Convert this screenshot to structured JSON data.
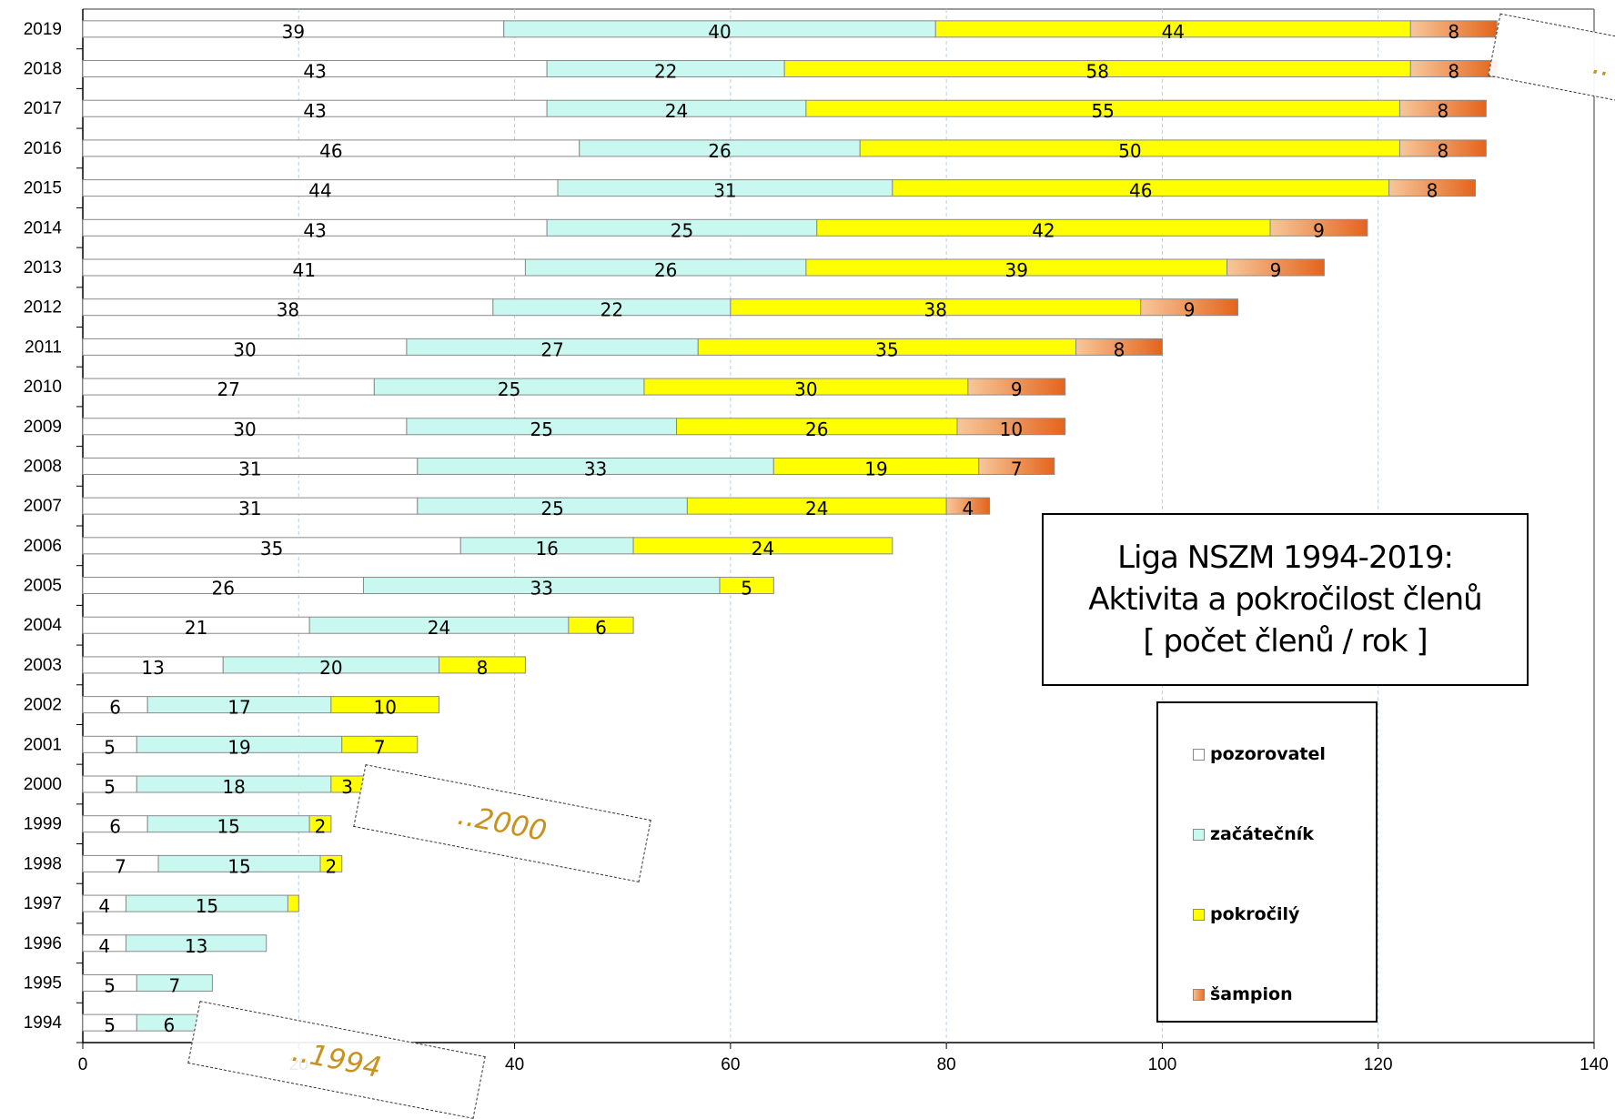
{
  "chart_data": {
    "type": "bar",
    "orientation": "horizontal",
    "stacked": true,
    "title_lines": [
      "Liga NSZM 1994-2019:",
      "Aktivita a pokročilost členů",
      "[ počet členů / rok ]"
    ],
    "xlim": [
      0,
      140
    ],
    "x_ticks": [
      "0",
      "20",
      "40",
      "60",
      "80",
      "100",
      "120",
      "140"
    ],
    "grid": "vertical dashed",
    "legend_placement": "right",
    "categories": [
      "2019",
      "2018",
      "2017",
      "2016",
      "2015",
      "2014",
      "2013",
      "2012",
      "2011",
      "2010",
      "2009",
      "2008",
      "2007",
      "2006",
      "2005",
      "2004",
      "2003",
      "2002",
      "2001",
      "2000",
      "1999",
      "1998",
      "1997",
      "1996",
      "1995",
      "1994"
    ],
    "series": [
      {
        "name": "pozorovatel",
        "color": "#ffffff",
        "values": [
          39,
          43,
          43,
          46,
          44,
          43,
          41,
          38,
          30,
          27,
          30,
          31,
          31,
          35,
          26,
          21,
          13,
          6,
          5,
          5,
          6,
          7,
          4,
          4,
          5,
          5
        ]
      },
      {
        "name": "začátečník",
        "color": "#c8f8f0",
        "values": [
          40,
          22,
          24,
          26,
          31,
          25,
          26,
          22,
          27,
          25,
          25,
          33,
          25,
          16,
          33,
          24,
          20,
          17,
          19,
          18,
          15,
          15,
          15,
          13,
          7,
          6
        ]
      },
      {
        "name": "pokročilý",
        "color": "#ffff00",
        "values": [
          44,
          58,
          55,
          50,
          46,
          42,
          39,
          38,
          35,
          30,
          26,
          19,
          24,
          24,
          5,
          6,
          8,
          10,
          7,
          3,
          2,
          2,
          1,
          0,
          0,
          0
        ]
      },
      {
        "name": "šampion",
        "color": "#f08a40",
        "values": [
          8,
          8,
          8,
          8,
          8,
          9,
          9,
          9,
          8,
          9,
          10,
          7,
          4,
          0,
          0,
          0,
          0,
          0,
          0,
          0,
          0,
          0,
          0,
          0,
          0,
          0
        ]
      }
    ],
    "hidden_labels": [
      [],
      [],
      [],
      [],
      [],
      [],
      [],
      [],
      [],
      [],
      [],
      [],
      [],
      [],
      [],
      [],
      [],
      [],
      [],
      [],
      [],
      [],
      [
        "pokročilý"
      ],
      [],
      [],
      []
    ]
  },
  "annotations": [
    {
      "text": "..2000"
    },
    {
      "text": "..1994"
    },
    {
      "text": ".."
    }
  ],
  "colors": {
    "gridline": "#b8cfe8",
    "bar_border": "#8a8a8a"
  }
}
